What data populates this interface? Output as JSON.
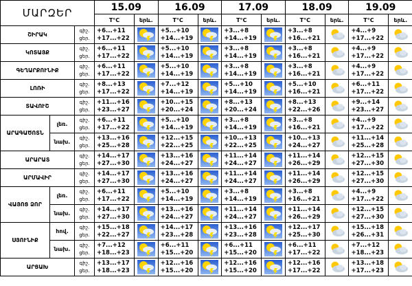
{
  "header": {
    "title": "ՄԱՐԶԵՐ",
    "dates": [
      "15.09",
      "16.09",
      "17.09",
      "18.09",
      "19.09"
    ],
    "temp_label": "T°C",
    "icon_label": "երև."
  },
  "labels": {
    "night": "գիշ.",
    "day": "ցեր."
  },
  "regions": [
    {
      "name": "ՇԻՐԱԿ",
      "forecast": [
        {
          "night": "+6...+11",
          "day": "+17...+22"
        },
        {
          "night": "+5...+10",
          "day": "+14...+19"
        },
        {
          "night": "+3...+8",
          "day": "+14...+19"
        },
        {
          "night": "+3...+8",
          "day": "+16...+21"
        },
        {
          "night": "+4...+9",
          "day": "+17...+22"
        }
      ]
    },
    {
      "name": "ԿՈՏԱՅՔ",
      "forecast": [
        {
          "night": "+6...+11",
          "day": "+17...+22"
        },
        {
          "night": "+5...+10",
          "day": "+14...+19"
        },
        {
          "night": "+3...+8",
          "day": "+14...+19"
        },
        {
          "night": "+3...+8",
          "day": "+16...+21"
        },
        {
          "night": "+4...+9",
          "day": "+17...+22"
        }
      ]
    },
    {
      "name": "ԳԵՂԱՐՔՈՒՆԻՔ",
      "forecast": [
        {
          "night": "+6...+11",
          "day": "+17...+22"
        },
        {
          "night": "+5...+10",
          "day": "+14...+19"
        },
        {
          "night": "+3...+8",
          "day": "+14...+19"
        },
        {
          "night": "+3...+8",
          "day": "+16...+21"
        },
        {
          "night": "+4...+9",
          "day": "+17...+22"
        }
      ]
    },
    {
      "name": "ԼՈՌԻ",
      "forecast": [
        {
          "night": "+8...+13",
          "day": "+17...+22"
        },
        {
          "night": "+7...+12",
          "day": "+14...+19"
        },
        {
          "night": "+5...+10",
          "day": "+14...+19"
        },
        {
          "night": "+5...+10",
          "day": "+16...+21"
        },
        {
          "night": "+6...+11",
          "day": "+17...+22"
        }
      ]
    },
    {
      "name": "ՏԱՎՈՒՇ",
      "forecast": [
        {
          "night": "+11...+16",
          "day": "+23...+27"
        },
        {
          "night": "+10...+15",
          "day": "+20...+24"
        },
        {
          "night": "+8...+13",
          "day": "+20...+24"
        },
        {
          "night": "+8...+13",
          "day": "+22...+26"
        },
        {
          "night": "+9...+14",
          "day": "+23...+27"
        }
      ]
    },
    {
      "name": "ԱՐԱԳԱԾՈՏՆ",
      "zones": [
        {
          "label": "լեռ.",
          "forecast": [
            {
              "night": "+6...+11",
              "day": "+17...+22"
            },
            {
              "night": "+5...+10",
              "day": "+14...+19"
            },
            {
              "night": "+3...+8",
              "day": "+14...+19"
            },
            {
              "night": "+3...+8",
              "day": "+16...+21"
            },
            {
              "night": "+4...+9",
              "day": "+17...+22"
            }
          ]
        },
        {
          "label": "նախ.",
          "forecast": [
            {
              "night": "+13...+16",
              "day": "+25...+28"
            },
            {
              "night": "+12...+15",
              "day": "+22...+25"
            },
            {
              "night": "+10...+13",
              "day": "+22...+25"
            },
            {
              "night": "+10...+13",
              "day": "+24...+27"
            },
            {
              "night": "+11...+14",
              "day": "+25...+28"
            }
          ]
        }
      ]
    },
    {
      "name": "ԱՐԱՐԱՏ",
      "forecast": [
        {
          "night": "+14...+17",
          "day": "+27...+30"
        },
        {
          "night": "+13...+16",
          "day": "+24...+27"
        },
        {
          "night": "+11...+14",
          "day": "+24...+27"
        },
        {
          "night": "+11...+14",
          "day": "+26...+29"
        },
        {
          "night": "+12...+15",
          "day": "+27...+30"
        }
      ]
    },
    {
      "name": "ԱՐՄԱՎԻՐ",
      "forecast": [
        {
          "night": "+14...+17",
          "day": "+27...+30"
        },
        {
          "night": "+13...+16",
          "day": "+24...+27"
        },
        {
          "night": "+11...+14",
          "day": "+24...+27"
        },
        {
          "night": "+11...+14",
          "day": "+26...+29"
        },
        {
          "night": "+12...+15",
          "day": "+27...+30"
        }
      ]
    },
    {
      "name": "ՎԱՅՈՑ ՁՈՐ",
      "zones": [
        {
          "label": "լեռ.",
          "forecast": [
            {
              "night": "+6...+11",
              "day": "+17...+22"
            },
            {
              "night": "+5...+10",
              "day": "+14...+19"
            },
            {
              "night": "+3...+8",
              "day": "+14...+19"
            },
            {
              "night": "+3...+8",
              "day": "+16...+21"
            },
            {
              "night": "+4...+9",
              "day": "+17...+22"
            }
          ]
        },
        {
          "label": "նախ.",
          "forecast": [
            {
              "night": "+14...+17",
              "day": "+27...+30"
            },
            {
              "night": "+13...+16",
              "day": "+24...+27"
            },
            {
              "night": "+11...+14",
              "day": "+24...+27"
            },
            {
              "night": "+11...+14",
              "day": "+26...+29"
            },
            {
              "night": "+12...+15",
              "day": "+27...+30"
            }
          ]
        }
      ]
    },
    {
      "name": "ՍՅՈՒՆԻՔ",
      "zones": [
        {
          "label": "հով.",
          "forecast": [
            {
              "night": "+15...+18",
              "day": "+22...+27"
            },
            {
              "night": "+14...+17",
              "day": "+23...+28"
            },
            {
              "night": "+13...+16",
              "day": "+23...+28"
            },
            {
              "night": "+12...+17",
              "day": "+25...+30"
            },
            {
              "night": "+15...+18",
              "day": "+26...+31"
            }
          ]
        },
        {
          "label": "նախ.",
          "forecast": [
            {
              "night": "+7...+12",
              "day": "+18...+23"
            },
            {
              "night": "+6...+11",
              "day": "+15...+20"
            },
            {
              "night": "+6...+11",
              "day": "+15...+20"
            },
            {
              "night": "+6...+11",
              "day": "+17...+22"
            },
            {
              "night": "+7...+12",
              "day": "+18...+23"
            }
          ]
        }
      ]
    },
    {
      "name": "ԱՐՑԱԽ",
      "forecast": [
        {
          "night": "+13...+17",
          "day": "+18...+23"
        },
        {
          "night": "+12...+16",
          "day": "+15...+20"
        },
        {
          "night": "+12...+16",
          "day": "+15...+20"
        },
        {
          "night": "+12...+16",
          "day": "+17...+22"
        },
        {
          "night": "+13...+18",
          "day": "+17...+23"
        }
      ]
    }
  ]
}
